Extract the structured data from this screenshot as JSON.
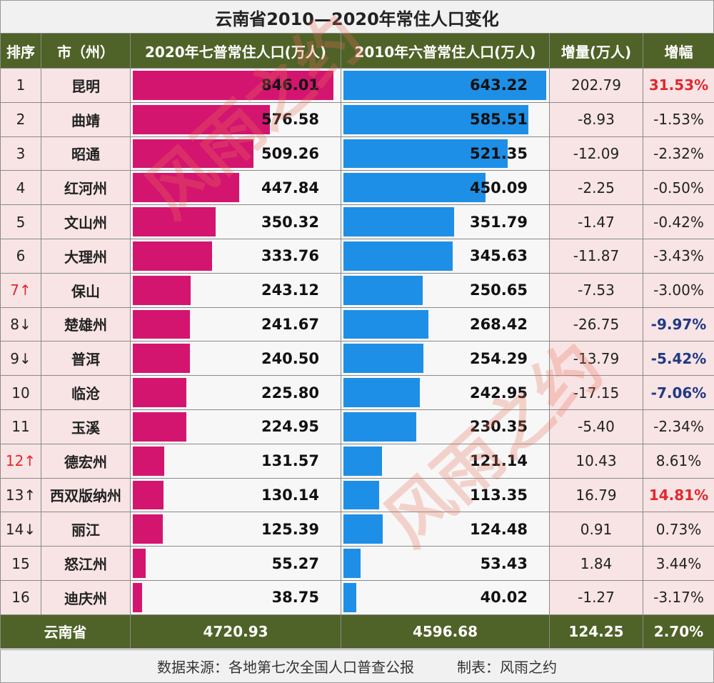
{
  "title": "云南省2010—2020年常住人口变化",
  "headers": {
    "rank": "排序",
    "city": "市（州）",
    "pop2020": "2020年七普常住人口(万人)",
    "pop2010": "2010年六普常住人口(万人)",
    "increase": "增量(万人)",
    "growth": "增幅"
  },
  "colors": {
    "header_bg": "#4f6228",
    "bar_2020": "#d4156f",
    "bar_2010": "#1e8fe6",
    "highlight_red": "#e0282e",
    "highlight_blue": "#1f3a84"
  },
  "rows": [
    {
      "rank": "1",
      "city": "昆明",
      "pop2020": "846.01",
      "pop2010": "643.22",
      "increase": "202.79",
      "growth": "31.53%"
    },
    {
      "rank": "2",
      "city": "曲靖",
      "pop2020": "576.58",
      "pop2010": "585.51",
      "increase": "-8.93",
      "growth": "-1.53%"
    },
    {
      "rank": "3",
      "city": "昭通",
      "pop2020": "509.26",
      "pop2010": "521.35",
      "increase": "-12.09",
      "growth": "-2.32%"
    },
    {
      "rank": "4",
      "city": "红河州",
      "pop2020": "447.84",
      "pop2010": "450.09",
      "increase": "-2.25",
      "growth": "-0.50%"
    },
    {
      "rank": "5",
      "city": "文山州",
      "pop2020": "350.32",
      "pop2010": "351.79",
      "increase": "-1.47",
      "growth": "-0.42%"
    },
    {
      "rank": "6",
      "city": "大理州",
      "pop2020": "333.76",
      "pop2010": "345.63",
      "increase": "-11.87",
      "growth": "-3.43%"
    },
    {
      "rank": "7↑",
      "city": "保山",
      "pop2020": "243.12",
      "pop2010": "250.65",
      "increase": "-7.53",
      "growth": "-3.00%"
    },
    {
      "rank": "8↓",
      "city": "楚雄州",
      "pop2020": "241.67",
      "pop2010": "268.42",
      "increase": "-26.75",
      "growth": "-9.97%"
    },
    {
      "rank": "9↓",
      "city": "普洱",
      "pop2020": "240.50",
      "pop2010": "254.29",
      "increase": "-13.79",
      "growth": "-5.42%"
    },
    {
      "rank": "10",
      "city": "临沧",
      "pop2020": "225.80",
      "pop2010": "242.95",
      "increase": "-17.15",
      "growth": "-7.06%"
    },
    {
      "rank": "11",
      "city": "玉溪",
      "pop2020": "224.95",
      "pop2010": "230.35",
      "increase": "-5.40",
      "growth": "-2.34%"
    },
    {
      "rank": "12↑",
      "city": "德宏州",
      "pop2020": "131.57",
      "pop2010": "121.14",
      "increase": "10.43",
      "growth": "8.61%"
    },
    {
      "rank": "13↑",
      "city": "西双版纳州",
      "pop2020": "130.14",
      "pop2010": "113.35",
      "increase": "16.79",
      "growth": "14.81%"
    },
    {
      "rank": "14↓",
      "city": "丽江",
      "pop2020": "125.39",
      "pop2010": "124.48",
      "increase": "0.91",
      "growth": "0.73%"
    },
    {
      "rank": "15",
      "city": "怒江州",
      "pop2020": "55.27",
      "pop2010": "53.43",
      "increase": "1.84",
      "growth": "3.44%"
    },
    {
      "rank": "16",
      "city": "迪庆州",
      "pop2020": "38.75",
      "pop2010": "40.02",
      "increase": "-1.27",
      "growth": "-3.17%"
    }
  ],
  "rank_red": [
    "7↑",
    "12↑"
  ],
  "growth_red": [
    "31.53%",
    "14.81%"
  ],
  "growth_blue": [
    "-9.97%",
    "-5.42%",
    "-7.06%"
  ],
  "total": {
    "label": "云南省",
    "pop2020": "4720.93",
    "pop2010": "4596.68",
    "increase": "124.25",
    "growth": "2.70%"
  },
  "source": {
    "left": "数据来源：各地第七次全国人口普查公报",
    "right": "制表：风雨之约"
  },
  "watermark": [
    "风雨之约",
    "风雨之约"
  ],
  "chart_data": {
    "type": "table",
    "title": "云南省2010—2020年常住人口变化",
    "columns": [
      "排序",
      "市（州）",
      "2020年七普常住人口(万人)",
      "2010年六普常住人口(万人)",
      "增量(万人)",
      "增幅"
    ],
    "categories": [
      "昆明",
      "曲靖",
      "昭通",
      "红河州",
      "文山州",
      "大理州",
      "保山",
      "楚雄州",
      "普洱",
      "临沧",
      "玉溪",
      "德宏州",
      "西双版纳州",
      "丽江",
      "怒江州",
      "迪庆州"
    ],
    "series": [
      {
        "name": "2020年七普常住人口(万人)",
        "values": [
          846.01,
          576.58,
          509.26,
          447.84,
          350.32,
          333.76,
          243.12,
          241.67,
          240.5,
          225.8,
          224.95,
          131.57,
          130.14,
          125.39,
          55.27,
          38.75
        ]
      },
      {
        "name": "2010年六普常住人口(万人)",
        "values": [
          643.22,
          585.51,
          521.35,
          450.09,
          351.79,
          345.63,
          250.65,
          268.42,
          254.29,
          242.95,
          230.35,
          121.14,
          113.35,
          124.48,
          53.43,
          40.02
        ]
      },
      {
        "name": "增量(万人)",
        "values": [
          202.79,
          -8.93,
          -12.09,
          -2.25,
          -1.47,
          -11.87,
          -7.53,
          -26.75,
          -13.79,
          -17.15,
          -5.4,
          10.43,
          16.79,
          0.91,
          1.84,
          -1.27
        ]
      },
      {
        "name": "增幅",
        "values": [
          31.53,
          -1.53,
          -2.32,
          -0.5,
          -0.42,
          -3.43,
          -3.0,
          -9.97,
          -5.42,
          -7.06,
          -2.34,
          8.61,
          14.81,
          0.73,
          3.44,
          -3.17
        ]
      }
    ]
  }
}
